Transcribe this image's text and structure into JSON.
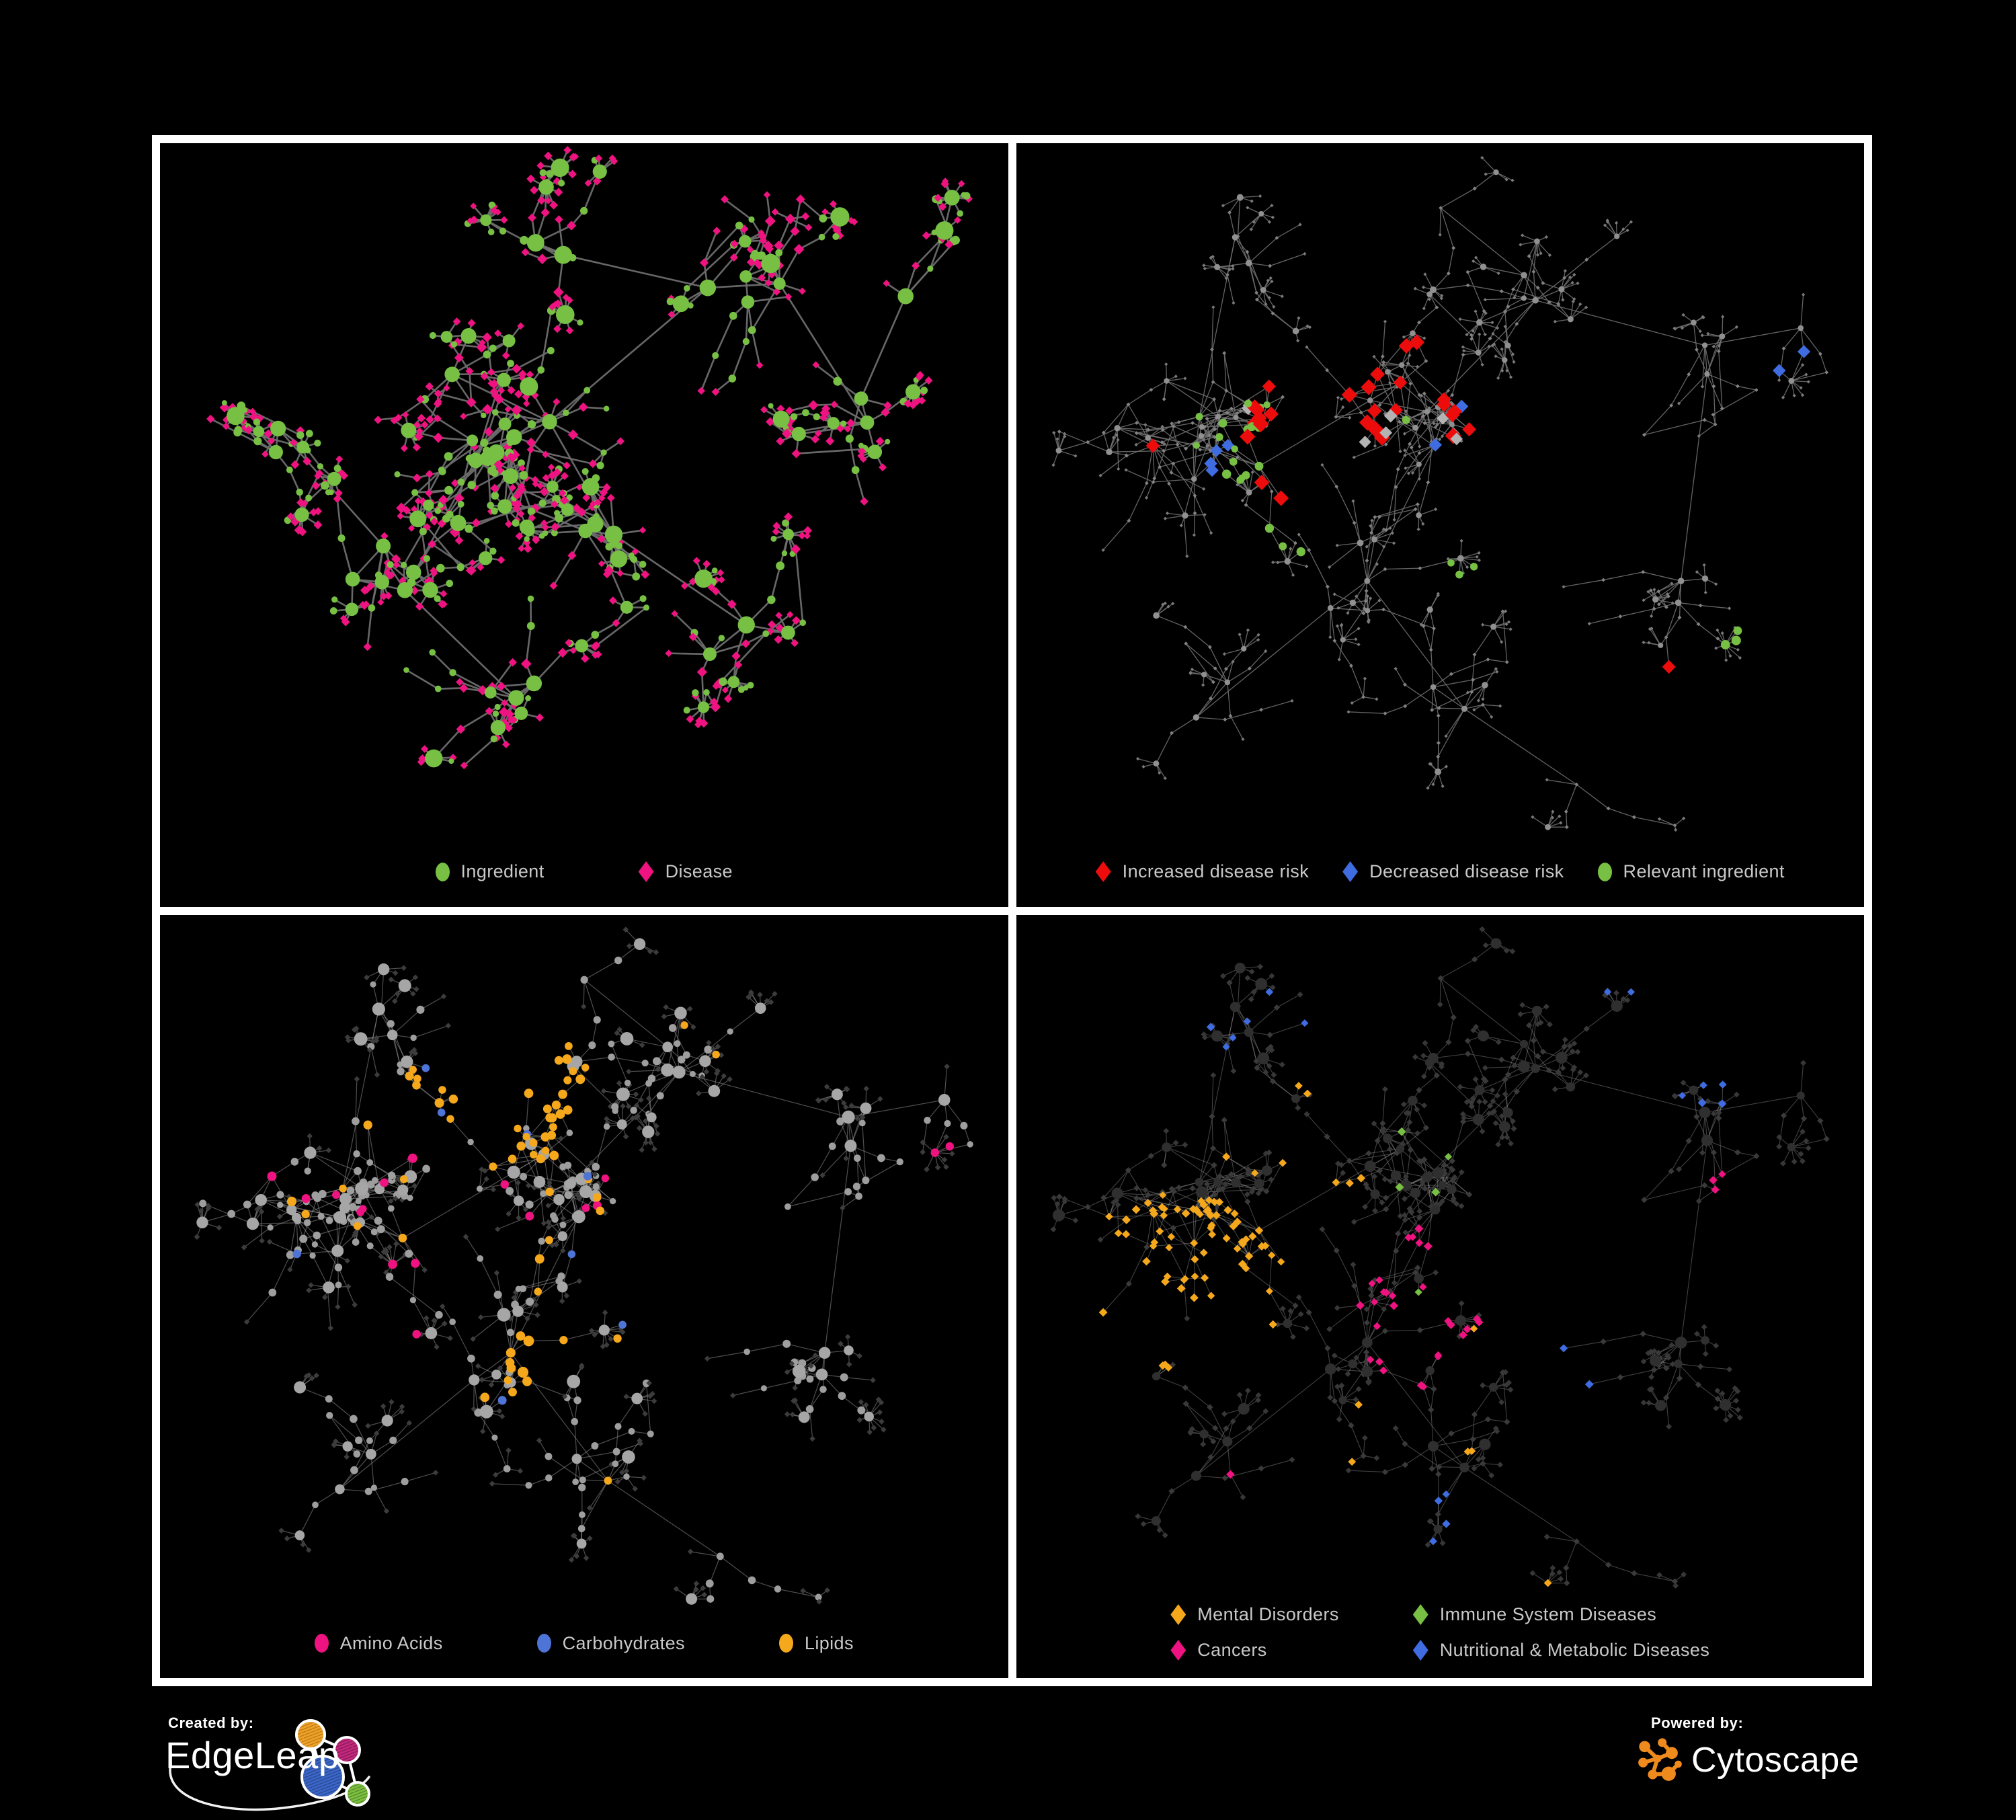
{
  "branding": {
    "created_by_label": "Created by:",
    "created_by_name": "EdgeLeap",
    "powered_by_label": "Powered by:",
    "powered_by_name": "Cytoscape"
  },
  "palette": {
    "green": "#77c044",
    "pink": "#ee1380",
    "red": "#ed0c0c",
    "blue": "#3f6ce0",
    "blue_soft": "#4f74d8",
    "amber": "#f5a81c",
    "silver": "#b3b3b3",
    "edge_dark_panel": "#6d6d6d",
    "edge_gray": "#6e6e6e",
    "edge_light": "#9b9b9b",
    "gray_node": "#8a8a8a",
    "gray_circle": "#9e9e9e",
    "gray_circle_hub": "#a6a6a6",
    "dark_diamond": "#3c3c3c",
    "dark_diamond2": "#373737",
    "hub_dark": "#2f2f2f",
    "panel_bg": "#000000",
    "panel_border": "#ffffff",
    "legend_text": "#c9c9c9"
  },
  "panels": [
    {
      "id": "ingredient-disease",
      "legend": [
        {
          "label": "Ingredient",
          "shape": "circle",
          "color": "#77c044"
        },
        {
          "label": "Disease",
          "shape": "diamond",
          "color": "#ee1380"
        }
      ]
    },
    {
      "id": "disease-risk",
      "legend": [
        {
          "label": "Increased disease risk",
          "shape": "diamond",
          "color": "#ed0c0c"
        },
        {
          "label": "Decreased disease risk",
          "shape": "diamond",
          "color": "#3f6ce0"
        },
        {
          "label": "Relevant ingredient",
          "shape": "circle",
          "color": "#77c044"
        }
      ]
    },
    {
      "id": "nutrient-classes",
      "legend": [
        {
          "label": "Amino Acids",
          "shape": "circle",
          "color": "#ee1380"
        },
        {
          "label": "Carbohydrates",
          "shape": "circle",
          "color": "#4f74d8"
        },
        {
          "label": "Lipids",
          "shape": "circle",
          "color": "#f5a81c"
        }
      ]
    },
    {
      "id": "disease-classes",
      "legend": [
        {
          "label": "Mental Disorders",
          "shape": "diamond",
          "color": "#f5a81c"
        },
        {
          "label": "Immune System Diseases",
          "shape": "diamond",
          "color": "#77c044"
        },
        {
          "label": "Cancers",
          "shape": "diamond",
          "color": "#ee1380"
        },
        {
          "label": "Nutritional & Metabolic Diseases",
          "shape": "diamond",
          "color": "#3f6ce0"
        }
      ]
    }
  ]
}
